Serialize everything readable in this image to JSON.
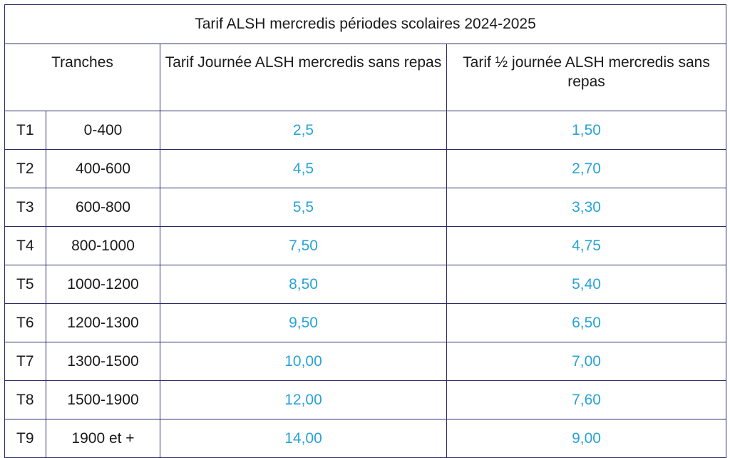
{
  "table": {
    "title": "Tarif ALSH mercredis périodes scolaires 2024-2025",
    "headers": {
      "tranches": "Tranches",
      "journee": "Tarif Journée ALSH mercredis sans repas",
      "demi_journee": "Tarif ½ journée ALSH mercredis sans repas"
    },
    "rows": [
      {
        "code": "T1",
        "range": "0-400",
        "journee": "2,5",
        "demi": "1,50"
      },
      {
        "code": "T2",
        "range": "400-600",
        "journee": "4,5",
        "demi": "2,70"
      },
      {
        "code": "T3",
        "range": "600-800",
        "journee": "5,5",
        "demi": "3,30"
      },
      {
        "code": "T4",
        "range": "800-1000",
        "journee": "7,50",
        "demi": "4,75"
      },
      {
        "code": "T5",
        "range": "1000-1200",
        "journee": "8,50",
        "demi": "5,40"
      },
      {
        "code": "T6",
        "range": "1200-1300",
        "journee": "9,50",
        "demi": "6,50"
      },
      {
        "code": "T7",
        "range": "1300-1500",
        "journee": "10,00",
        "demi": "7,00"
      },
      {
        "code": "T8",
        "range": "1500-1900",
        "journee": "12,00",
        "demi": "7,60"
      },
      {
        "code": "T9",
        "range": "1900 et +",
        "journee": "14,00",
        "demi": "9,00"
      }
    ],
    "colors": {
      "border": "#2b2b6b",
      "value_text": "#29a3d6",
      "label_text": "#1a1a1a"
    }
  }
}
